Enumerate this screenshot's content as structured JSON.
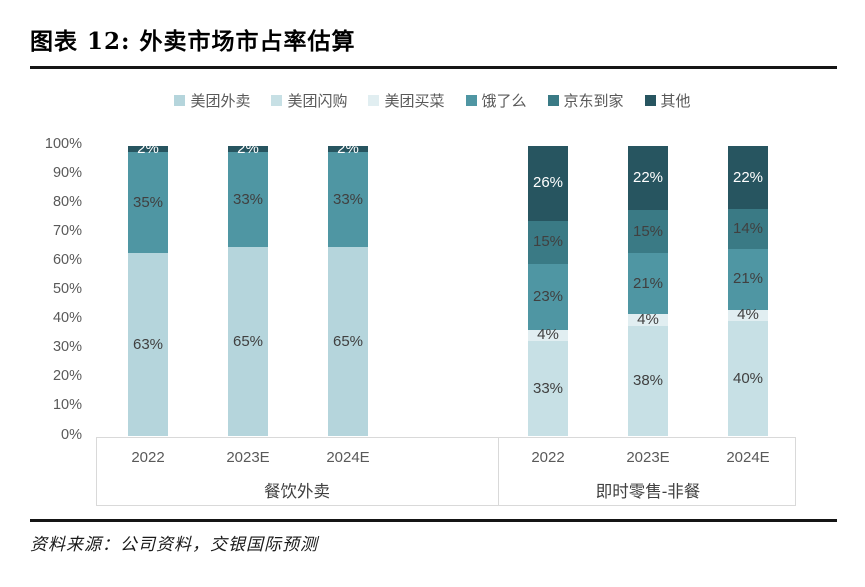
{
  "title": "图表 12: 外卖市场市占率估算",
  "source": "资料来源：公司资料，交银国际预测",
  "colors": {
    "meituan_waimai": "#b5d5dc",
    "meituan_shangou": "#c7e0e5",
    "meituan_maicai": "#e1eef1",
    "eleme": "#4f96a3",
    "jd_daojia": "#3a7a85",
    "qita": "#275560",
    "label_dark": "#404040",
    "label_light": "#ffffff",
    "axis_text": "#595959"
  },
  "legend": {
    "items": [
      {
        "label": "美团外卖",
        "color": "#b5d5dc"
      },
      {
        "label": "美团闪购",
        "color": "#c7e0e5"
      },
      {
        "label": "美团买菜",
        "color": "#e1eef1"
      },
      {
        "label": "饿了么",
        "color": "#4f96a3"
      },
      {
        "label": "京东到家",
        "color": "#3a7a85"
      },
      {
        "label": "其他",
        "color": "#275560"
      }
    ]
  },
  "y_axis": {
    "ticks": [
      "100%",
      "90%",
      "80%",
      "70%",
      "60%",
      "50%",
      "40%",
      "30%",
      "20%",
      "10%",
      "0%"
    ]
  },
  "chart_data": {
    "type": "bar",
    "stacked": true,
    "unit": "%",
    "ylim": [
      0,
      100
    ],
    "grid": false,
    "legend_position": "top",
    "groups": [
      {
        "label": "餐饮外卖",
        "categories": [
          "2022",
          "2023E",
          "2024E"
        ],
        "series": [
          {
            "name": "美团外卖",
            "color": "#b5d5dc",
            "label_color": "#404040",
            "values": [
              63,
              65,
              65
            ]
          },
          {
            "name": "饿了么",
            "color": "#4f96a3",
            "label_color": "#404040",
            "values": [
              35,
              33,
              33
            ]
          },
          {
            "name": "其他",
            "color": "#275560",
            "label_color": "#ffffff",
            "values": [
              2,
              2,
              2
            ]
          }
        ]
      },
      {
        "label": "即时零售-非餐",
        "categories": [
          "2022",
          "2023E",
          "2024E"
        ],
        "series": [
          {
            "name": "美团闪购",
            "color": "#c7e0e5",
            "label_color": "#404040",
            "values": [
              33,
              38,
              40
            ]
          },
          {
            "name": "美团买菜",
            "color": "#e1eef1",
            "label_color": "#404040",
            "values": [
              4,
              4,
              4
            ]
          },
          {
            "name": "饿了么",
            "color": "#4f96a3",
            "label_color": "#404040",
            "values": [
              23,
              21,
              21
            ]
          },
          {
            "name": "京东到家",
            "color": "#3a7a85",
            "label_color": "#404040",
            "values": [
              15,
              15,
              14
            ]
          },
          {
            "name": "其他",
            "color": "#275560",
            "label_color": "#ffffff",
            "values": [
              26,
              22,
              22
            ]
          }
        ]
      }
    ]
  }
}
